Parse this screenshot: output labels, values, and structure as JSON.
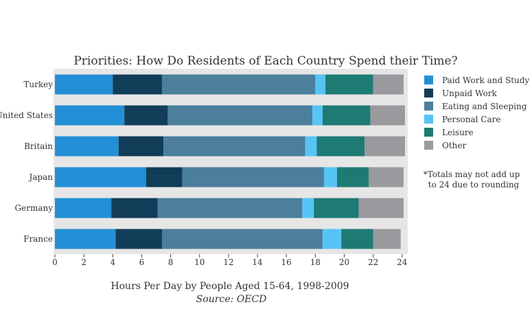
{
  "chart_data": {
    "type": "bar",
    "orientation": "horizontal",
    "stacked": true,
    "title": "Priorities: How Do Residents of Each Country Spend their Time?",
    "xlabel": "Hours Per Day by People Aged 15-64, 1998-2009",
    "source": "Source: OECD",
    "note_lines": [
      "*Totals may not add up",
      "to 24 due to rounding"
    ],
    "xlim": [
      0,
      24.2
    ],
    "xticks": [
      0,
      2,
      4,
      6,
      8,
      10,
      12,
      14,
      16,
      18,
      20,
      22,
      24
    ],
    "grid": false,
    "legend_position": "right",
    "categories": [
      "Turkey",
      "United States",
      "Britain",
      "Japan",
      "Germany",
      "France"
    ],
    "series": [
      {
        "name": "Paid Work and Study",
        "color": "#238fd6",
        "values": [
          4.0,
          4.8,
          4.4,
          6.3,
          3.9,
          4.2
        ]
      },
      {
        "name": "Unpaid Work",
        "color": "#123d59",
        "values": [
          3.4,
          3.0,
          3.1,
          2.5,
          3.2,
          3.2
        ]
      },
      {
        "name": "Eating and Sleeping",
        "color": "#4b7f9c",
        "values": [
          10.6,
          10.0,
          9.8,
          9.8,
          10.0,
          11.1
        ]
      },
      {
        "name": "Personal Care",
        "color": "#56c4f5",
        "values": [
          0.7,
          0.7,
          0.8,
          0.9,
          0.8,
          1.3
        ]
      },
      {
        "name": "Leisure",
        "color": "#1e7b74",
        "values": [
          3.3,
          3.3,
          3.3,
          2.2,
          3.1,
          2.2
        ]
      },
      {
        "name": "Other",
        "color": "#9a999e",
        "values": [
          2.1,
          2.4,
          2.8,
          2.4,
          3.1,
          1.9
        ]
      }
    ]
  }
}
